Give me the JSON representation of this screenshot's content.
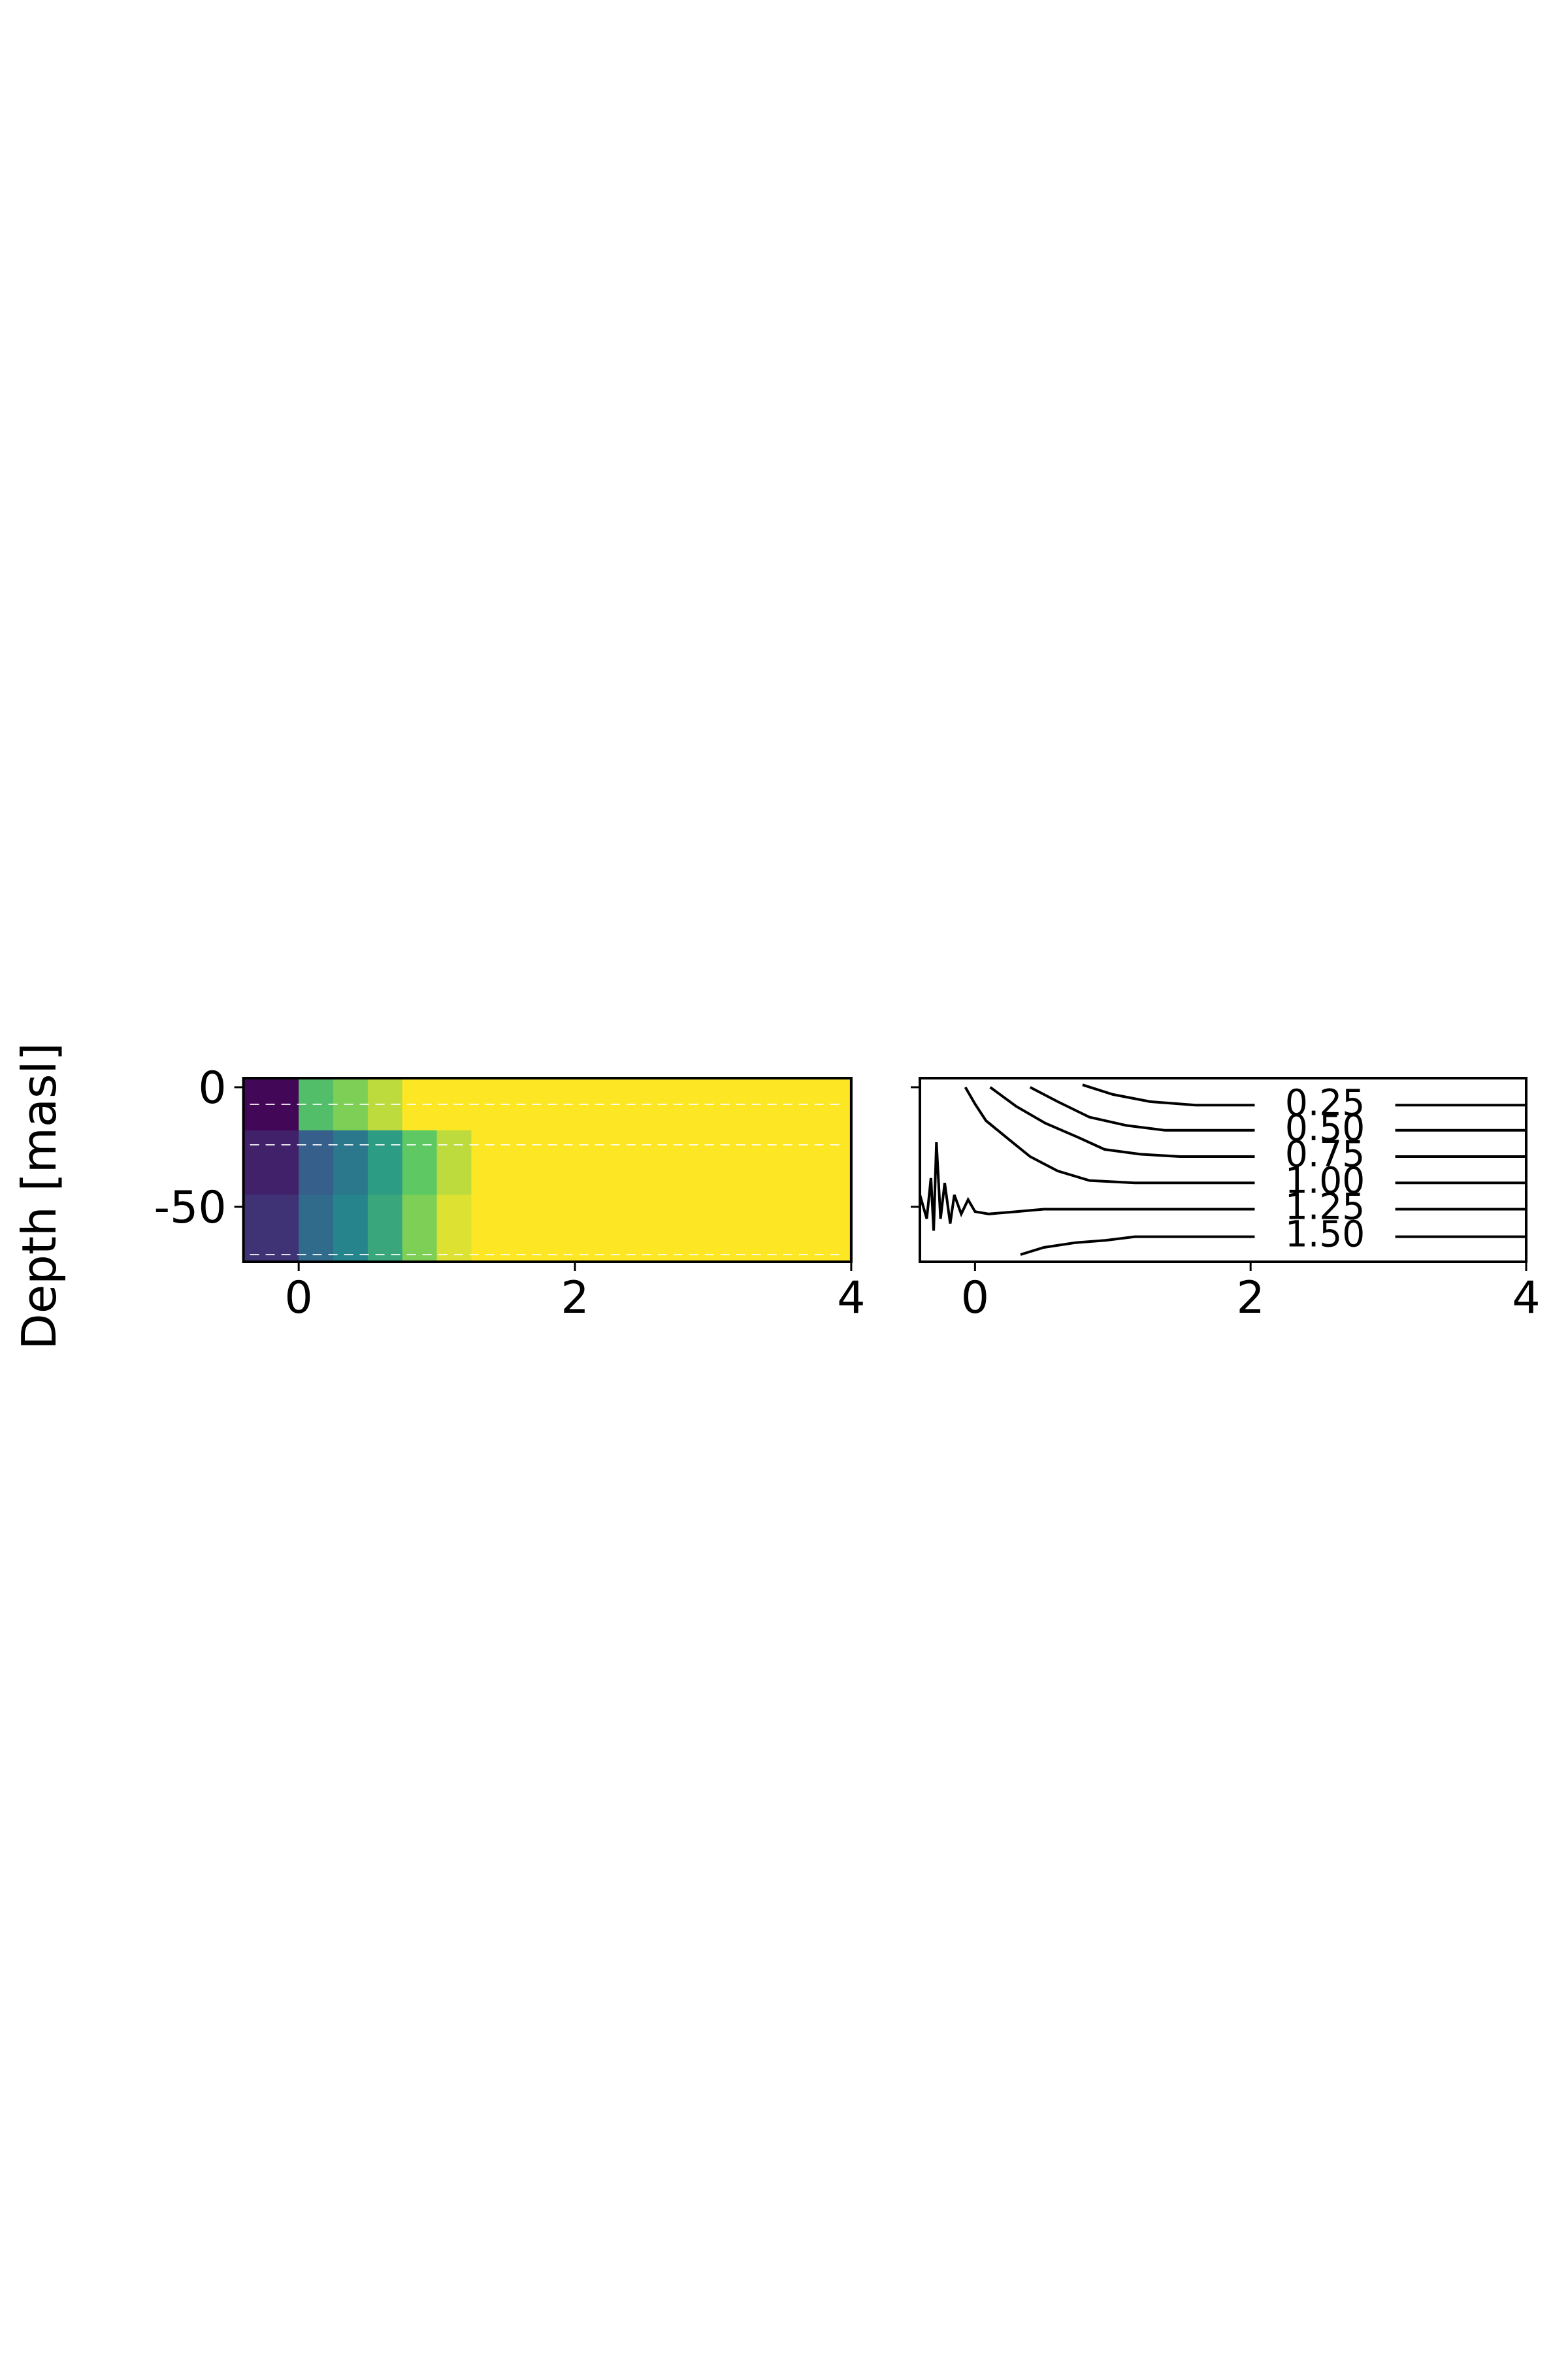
{
  "chart_data": [
    {
      "type": "heatmap",
      "ylabel": "Depth [masl]",
      "xlim": [
        -0.4,
        4
      ],
      "ylim": [
        -73,
        3.8
      ],
      "xticks": [
        0,
        2,
        4
      ],
      "yticks": [
        0,
        -50
      ],
      "colormap": "viridis",
      "show_ytick_labels": true,
      "x_edges": [
        -0.4,
        0,
        0.25,
        0.5,
        0.75,
        1,
        1.25,
        1.5,
        4
      ],
      "y_edges": [
        3.8,
        -18,
        -45,
        -73
      ],
      "z": [
        [
          0.02,
          0.7,
          0.8,
          0.9,
          1,
          1,
          1,
          1
        ],
        [
          0.1,
          0.3,
          0.4,
          0.55,
          0.75,
          0.9,
          1,
          1
        ],
        [
          0.15,
          0.35,
          0.45,
          0.6,
          0.8,
          0.95,
          1,
          1
        ]
      ]
    },
    {
      "type": "contour",
      "xlim": [
        -0.4,
        4
      ],
      "ylim": [
        -73,
        3.8
      ],
      "xticks": [
        0,
        2,
        4
      ],
      "yticks": [
        0,
        -50
      ],
      "show_ytick_labels": false,
      "color": "#000000",
      "series": [
        {
          "level": {
            "value": 0.25,
            "label": "0.25"
          },
          "x": [
            0.78,
            1.0,
            1.27,
            1.6,
            2.03,
            null,
            3.05,
            4
          ],
          "y": [
            1,
            -3,
            -6,
            -7.5,
            -7.5,
            null,
            -7.5,
            -7.5
          ]
        },
        {
          "level": {
            "value": 0.5,
            "label": "0.50"
          },
          "x": [
            0.4,
            0.6,
            0.83,
            1.1,
            1.38,
            2.03,
            null,
            3.05,
            4
          ],
          "y": [
            0,
            -6,
            -12.5,
            -16,
            -18,
            -18,
            null,
            -18,
            -18
          ]
        },
        {
          "level": {
            "value": 0.75,
            "label": "0.75"
          },
          "x": [
            0.11,
            0.3,
            0.51,
            0.75,
            0.94,
            1.2,
            1.49,
            2.03,
            null,
            3.05,
            4
          ],
          "y": [
            0,
            -8,
            -15,
            -21,
            -26,
            -28,
            -29,
            -29,
            null,
            -29,
            -29
          ]
        },
        {
          "level": {
            "value": 1.0,
            "label": "1.00"
          },
          "x": [
            -0.07,
            0.0,
            0.08,
            0.25,
            0.4,
            0.6,
            0.83,
            1.16,
            2.03,
            null,
            3.05,
            4
          ],
          "y": [
            0,
            -7,
            -14,
            -22,
            -29,
            -35,
            -39,
            -40,
            -40,
            null,
            -40,
            -40
          ]
        },
        {
          "level": {
            "value": 1.25,
            "label": "1.25"
          },
          "x": [
            -0.4,
            -0.35,
            -0.32,
            -0.3,
            -0.28,
            -0.25,
            -0.22,
            -0.18,
            -0.15,
            -0.1,
            -0.05,
            0,
            0.1,
            0.3,
            0.5,
            1,
            1.5,
            2.03,
            null,
            3.05,
            4
          ],
          "y": [
            -45,
            -55,
            -38,
            -60,
            -23,
            -55,
            -40,
            -57,
            -45,
            -53,
            -47,
            -52,
            -53,
            -52,
            -51,
            -51,
            -51,
            -51,
            null,
            -51,
            -51
          ]
        },
        {
          "level": {
            "value": 1.5,
            "label": "1.50"
          },
          "x": [
            0.33,
            0.5,
            0.73,
            0.95,
            1.16,
            2.03,
            null,
            3.05,
            4
          ],
          "y": [
            -70,
            -67,
            -65,
            -64,
            -62.5,
            -62.5,
            null,
            -62.5,
            -62.5
          ]
        }
      ]
    }
  ]
}
